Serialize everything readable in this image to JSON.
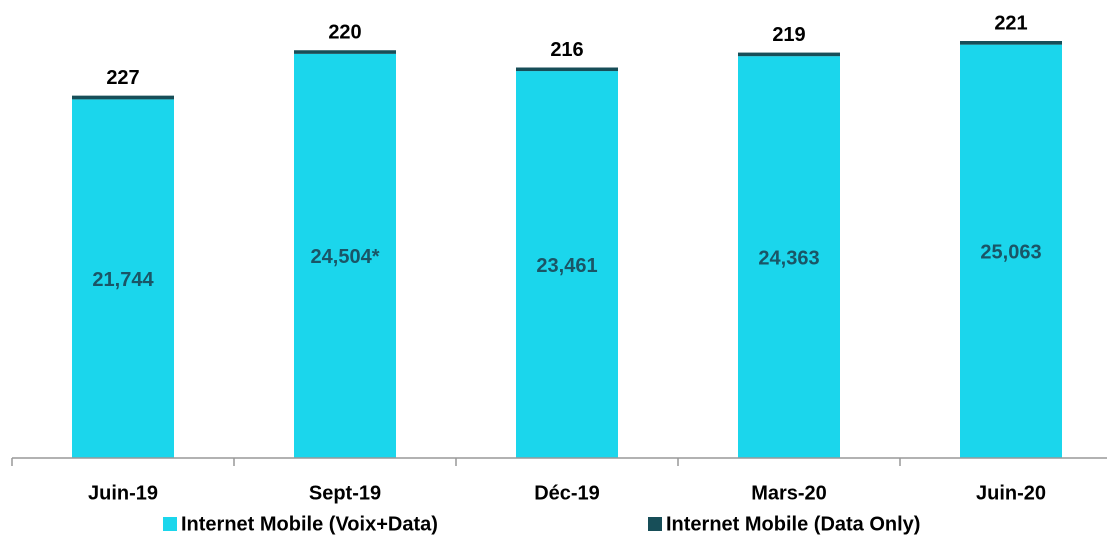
{
  "chart_data": {
    "type": "stacked_bar",
    "categories": [
      "Juin-19",
      "Sept-19",
      "Déc-19",
      "Mars-20",
      "Juin-20"
    ],
    "series": [
      {
        "name": "Internet Mobile (Voix+Data)",
        "color": "#1bd6ec",
        "values": [
          21744,
          24504,
          23461,
          24363,
          25063
        ],
        "value_labels": [
          "21,744",
          "24,504*",
          "23,461",
          "24,363",
          "25,063"
        ]
      },
      {
        "name": "Internet Mobile (Data Only)",
        "color": "#174e58",
        "values": [
          227,
          220,
          216,
          219,
          221
        ]
      }
    ]
  }
}
